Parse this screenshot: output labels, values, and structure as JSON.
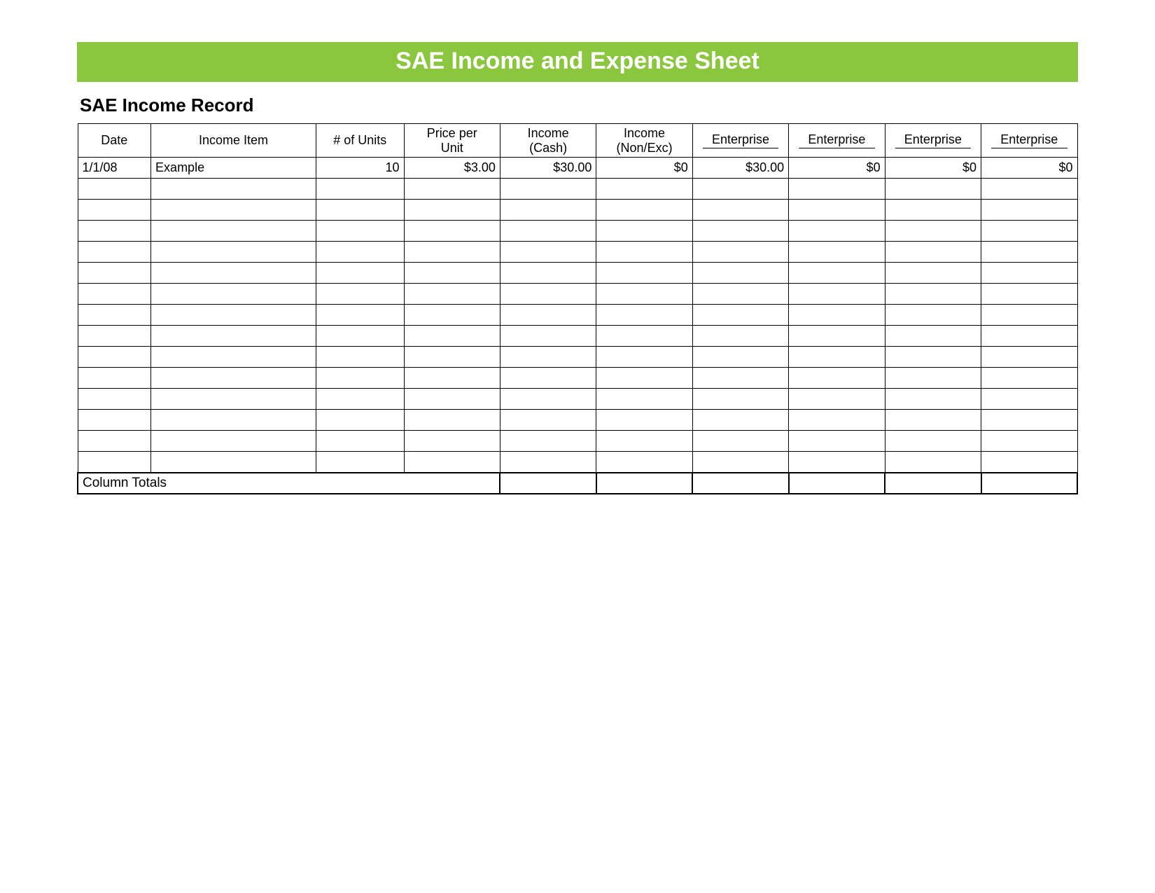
{
  "colors": {
    "banner_bg": "#8bc63f",
    "banner_text": "#ffffff",
    "page_bg": "#ffffff",
    "border": "#000000",
    "text": "#000000"
  },
  "typography": {
    "banner_fontsize": 34,
    "section_title_fontsize": 26,
    "cell_fontsize": 18,
    "font_family": "Arial"
  },
  "banner_title": "SAE Income and Expense Sheet",
  "section_title": "SAE Income Record",
  "table": {
    "columns": [
      {
        "label": "Date",
        "align": "left",
        "width_pct": 7.0
      },
      {
        "label": "Income Item",
        "align": "left",
        "width_pct": 15.8
      },
      {
        "label": "# of Units",
        "align": "right",
        "width_pct": 8.4
      },
      {
        "label": "Price per Unit",
        "align": "right",
        "width_pct": 9.2
      },
      {
        "label": "Income (Cash)",
        "align": "right",
        "width_pct": 9.2
      },
      {
        "label": "Income (Non/Exc)",
        "align": "right",
        "width_pct": 9.2
      },
      {
        "label": "Enterprise ______",
        "align": "right",
        "width_pct": 9.2
      },
      {
        "label": "Enterprise ______",
        "align": "right",
        "width_pct": 9.2
      },
      {
        "label": "Enterprise ______",
        "align": "right",
        "width_pct": 9.2
      },
      {
        "label": "Enterprise ______",
        "align": "right",
        "width_pct": 9.2
      }
    ],
    "rows": [
      [
        "1/1/08",
        "Example",
        "10",
        "$3.00",
        "$30.00",
        "$0",
        "$30.00",
        "$0",
        "$0",
        "$0"
      ],
      [
        "",
        "",
        "",
        "",
        "",
        "",
        "",
        "",
        "",
        ""
      ],
      [
        "",
        "",
        "",
        "",
        "",
        "",
        "",
        "",
        "",
        ""
      ],
      [
        "",
        "",
        "",
        "",
        "",
        "",
        "",
        "",
        "",
        ""
      ],
      [
        "",
        "",
        "",
        "",
        "",
        "",
        "",
        "",
        "",
        ""
      ],
      [
        "",
        "",
        "",
        "",
        "",
        "",
        "",
        "",
        "",
        ""
      ],
      [
        "",
        "",
        "",
        "",
        "",
        "",
        "",
        "",
        "",
        ""
      ],
      [
        "",
        "",
        "",
        "",
        "",
        "",
        "",
        "",
        "",
        ""
      ],
      [
        "",
        "",
        "",
        "",
        "",
        "",
        "",
        "",
        "",
        ""
      ],
      [
        "",
        "",
        "",
        "",
        "",
        "",
        "",
        "",
        "",
        ""
      ],
      [
        "",
        "",
        "",
        "",
        "",
        "",
        "",
        "",
        "",
        ""
      ],
      [
        "",
        "",
        "",
        "",
        "",
        "",
        "",
        "",
        "",
        ""
      ],
      [
        "",
        "",
        "",
        "",
        "",
        "",
        "",
        "",
        "",
        ""
      ],
      [
        "",
        "",
        "",
        "",
        "",
        "",
        "",
        "",
        "",
        ""
      ],
      [
        "",
        "",
        "",
        "",
        "",
        "",
        "",
        "",
        "",
        ""
      ]
    ],
    "totals_label": "Column Totals",
    "totals_values": [
      "",
      "",
      "",
      "",
      "",
      ""
    ]
  }
}
